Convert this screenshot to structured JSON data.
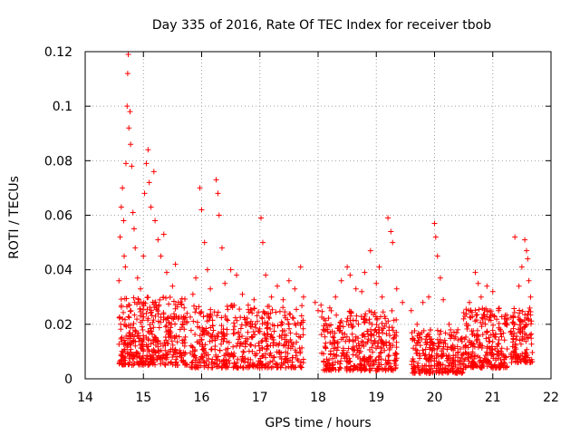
{
  "chart_data": {
    "type": "scatter",
    "title": "Day 335 of 2016, Rate Of TEC Index for receiver tbob",
    "xlabel": "GPS time / hours",
    "ylabel": "ROTI / TECUs",
    "xlim": [
      14,
      22
    ],
    "ylim": [
      0,
      0.12
    ],
    "x_ticks": [
      "14",
      "15",
      "16",
      "17",
      "18",
      "19",
      "20",
      "21",
      "22"
    ],
    "y_ticks": [
      "0",
      "0.02",
      "0.04",
      "0.06",
      "0.08",
      "0.1",
      "0.12"
    ],
    "grid": true,
    "marker": "+",
    "series": [
      {
        "name": "ROTI",
        "color": "#ff0000",
        "points": [
          [
            14.58,
            0.036
          ],
          [
            14.6,
            0.052
          ],
          [
            14.62,
            0.063
          ],
          [
            14.64,
            0.07
          ],
          [
            14.66,
            0.058
          ],
          [
            14.67,
            0.045
          ],
          [
            14.69,
            0.041
          ],
          [
            14.7,
            0.079
          ],
          [
            14.72,
            0.1
          ],
          [
            14.73,
            0.112
          ],
          [
            14.74,
            0.119
          ],
          [
            14.75,
            0.092
          ],
          [
            14.77,
            0.098
          ],
          [
            14.78,
            0.086
          ],
          [
            14.8,
            0.078
          ],
          [
            14.82,
            0.061
          ],
          [
            14.84,
            0.055
          ],
          [
            14.86,
            0.048
          ],
          [
            14.9,
            0.037
          ],
          [
            14.95,
            0.033
          ],
          [
            15.0,
            0.045
          ],
          [
            15.02,
            0.068
          ],
          [
            15.05,
            0.079
          ],
          [
            15.08,
            0.084
          ],
          [
            15.1,
            0.072
          ],
          [
            15.13,
            0.063
          ],
          [
            15.18,
            0.076
          ],
          [
            15.2,
            0.058
          ],
          [
            15.25,
            0.051
          ],
          [
            15.3,
            0.045
          ],
          [
            15.35,
            0.053
          ],
          [
            15.4,
            0.039
          ],
          [
            15.5,
            0.034
          ],
          [
            15.55,
            0.042
          ],
          [
            15.6,
            0.028
          ],
          [
            15.7,
            0.026
          ],
          [
            15.75,
            0.024
          ],
          [
            15.85,
            0.031
          ],
          [
            15.9,
            0.037
          ],
          [
            15.97,
            0.07
          ],
          [
            16.0,
            0.062
          ],
          [
            16.05,
            0.05
          ],
          [
            16.1,
            0.04
          ],
          [
            16.15,
            0.033
          ],
          [
            16.25,
            0.073
          ],
          [
            16.28,
            0.068
          ],
          [
            16.3,
            0.06
          ],
          [
            16.35,
            0.048
          ],
          [
            16.4,
            0.035
          ],
          [
            16.5,
            0.04
          ],
          [
            16.6,
            0.038
          ],
          [
            16.7,
            0.031
          ],
          [
            16.8,
            0.027
          ],
          [
            16.9,
            0.029
          ],
          [
            17.02,
            0.059
          ],
          [
            17.05,
            0.05
          ],
          [
            17.1,
            0.038
          ],
          [
            17.2,
            0.03
          ],
          [
            17.3,
            0.034
          ],
          [
            17.4,
            0.029
          ],
          [
            17.5,
            0.036
          ],
          [
            17.6,
            0.033
          ],
          [
            17.7,
            0.041
          ],
          [
            17.75,
            0.03
          ],
          [
            17.95,
            0.028
          ],
          [
            18.0,
            0.025
          ],
          [
            18.05,
            0.027
          ],
          [
            18.1,
            0.022
          ],
          [
            18.2,
            0.026
          ],
          [
            18.3,
            0.03
          ],
          [
            18.4,
            0.036
          ],
          [
            18.5,
            0.041
          ],
          [
            18.55,
            0.038
          ],
          [
            18.65,
            0.033
          ],
          [
            18.75,
            0.032
          ],
          [
            18.8,
            0.039
          ],
          [
            18.9,
            0.047
          ],
          [
            19.0,
            0.035
          ],
          [
            19.05,
            0.041
          ],
          [
            19.1,
            0.03
          ],
          [
            19.2,
            0.059
          ],
          [
            19.25,
            0.054
          ],
          [
            19.28,
            0.05
          ],
          [
            19.35,
            0.033
          ],
          [
            19.45,
            0.028
          ],
          [
            19.6,
            0.025
          ],
          [
            19.7,
            0.02
          ],
          [
            19.8,
            0.028
          ],
          [
            19.9,
            0.03
          ],
          [
            20.0,
            0.057
          ],
          [
            20.02,
            0.052
          ],
          [
            20.05,
            0.045
          ],
          [
            20.1,
            0.037
          ],
          [
            20.15,
            0.029
          ],
          [
            20.25,
            0.02
          ],
          [
            20.4,
            0.018
          ],
          [
            20.5,
            0.022
          ],
          [
            20.6,
            0.028
          ],
          [
            20.7,
            0.039
          ],
          [
            20.75,
            0.035
          ],
          [
            20.8,
            0.03
          ],
          [
            20.9,
            0.034
          ],
          [
            21.0,
            0.032
          ],
          [
            21.1,
            0.025
          ],
          [
            21.2,
            0.022
          ],
          [
            21.38,
            0.052
          ],
          [
            21.45,
            0.034
          ],
          [
            21.5,
            0.041
          ],
          [
            21.55,
            0.051
          ],
          [
            21.58,
            0.047
          ],
          [
            21.6,
            0.044
          ],
          [
            21.62,
            0.036
          ],
          [
            21.65,
            0.03
          ]
        ]
      }
    ],
    "dense_band": {
      "description": "dense background scatter of ROTI values",
      "segments": [
        {
          "x_start": 14.58,
          "x_end": 15.75,
          "y_min": 0.005,
          "y_max": 0.03,
          "count": 420
        },
        {
          "x_start": 15.8,
          "x_end": 17.75,
          "y_min": 0.004,
          "y_max": 0.027,
          "count": 520
        },
        {
          "x_start": 18.05,
          "x_end": 19.35,
          "y_min": 0.003,
          "y_max": 0.025,
          "count": 380
        },
        {
          "x_start": 19.6,
          "x_end": 20.5,
          "y_min": 0.002,
          "y_max": 0.018,
          "count": 260
        },
        {
          "x_start": 20.5,
          "x_end": 21.25,
          "y_min": 0.004,
          "y_max": 0.026,
          "count": 260
        },
        {
          "x_start": 21.3,
          "x_end": 21.68,
          "y_min": 0.006,
          "y_max": 0.026,
          "count": 130
        }
      ]
    }
  }
}
